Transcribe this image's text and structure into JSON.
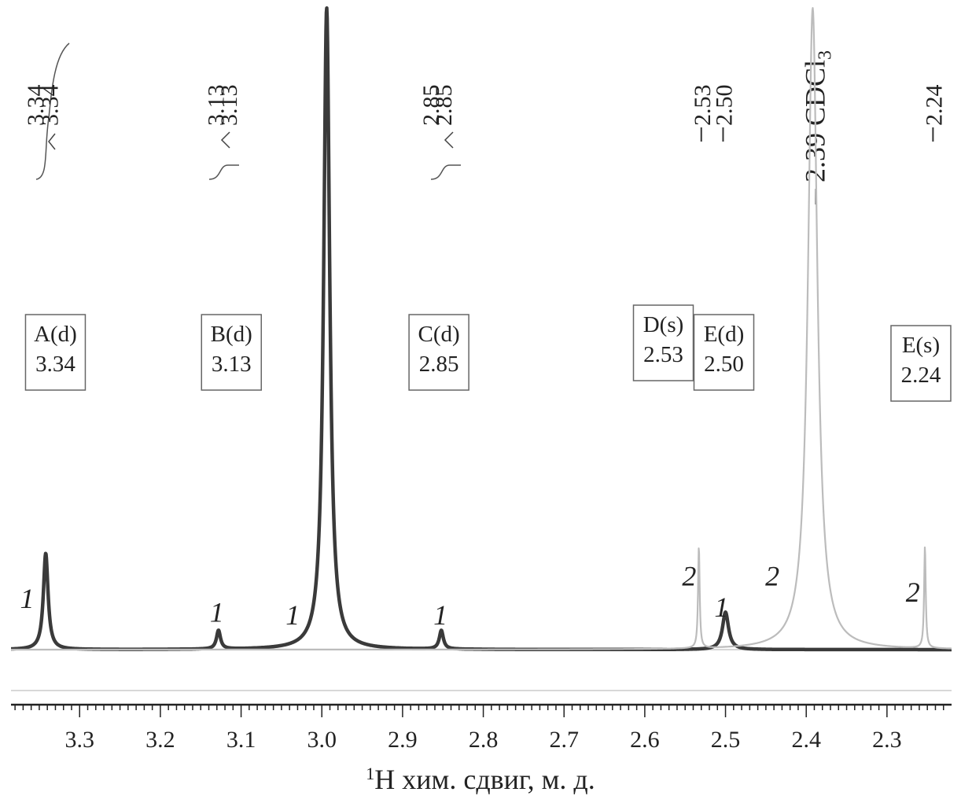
{
  "chart_data": {
    "type": "line",
    "xlabel_sup": "1",
    "xlabel": "H хим. сдвиг, м. д.",
    "xlim": [
      3.385,
      2.22
    ],
    "x_reversed": true,
    "ticks": [
      "3.3",
      "3.2",
      "3.1",
      "3.0",
      "2.9",
      "2.8",
      "2.7",
      "2.6",
      "2.5",
      "2.4",
      "2.3"
    ],
    "series": [
      {
        "name": "1",
        "color": "#3a3a3a",
        "peaks": [
          {
            "ppm": 3.342,
            "height": 0.18,
            "width": 0.0035
          },
          {
            "ppm": 3.128,
            "height": 0.035,
            "width": 0.003
          },
          {
            "ppm": 2.994,
            "height": 1.2,
            "width": 0.0045
          },
          {
            "ppm": 2.852,
            "height": 0.035,
            "width": 0.003
          },
          {
            "ppm": 2.5,
            "height": 0.07,
            "width": 0.0045
          }
        ]
      },
      {
        "name": "2",
        "color": "#bcbcbc",
        "peaks": [
          {
            "ppm": 2.533,
            "height": 0.19,
            "width": 0.0012
          },
          {
            "ppm": 2.392,
            "height": 1.2,
            "width": 0.007
          },
          {
            "ppm": 2.253,
            "height": 0.19,
            "width": 0.0012
          }
        ]
      }
    ],
    "peak_labels": [
      {
        "ppm": 3.356,
        "text": "3.34"
      },
      {
        "ppm": 3.338,
        "text": "3.34"
      },
      {
        "ppm": 3.132,
        "text": "3.13"
      },
      {
        "ppm": 3.116,
        "text": "3.13"
      },
      {
        "ppm": 2.866,
        "text": "2.85"
      },
      {
        "ppm": 2.85,
        "text": "2.85"
      },
      {
        "ppm": 2.53,
        "text": "2.53"
      },
      {
        "ppm": 2.503,
        "text": "2.50"
      },
      {
        "ppm": 2.388,
        "text": "2.39 CDCl"
      },
      {
        "ppm": 2.243,
        "text": "2.24"
      }
    ],
    "solvent_sub": "3",
    "assignment_boxes": [
      {
        "ppm": 3.33,
        "name": "A(d)",
        "value": "3.34"
      },
      {
        "ppm": 3.112,
        "name": "B(d)",
        "value": "3.13"
      },
      {
        "ppm": 2.855,
        "name": "C(d)",
        "value": "2.85"
      },
      {
        "ppm": 2.577,
        "name": "D(s)",
        "value": "2.53"
      },
      {
        "ppm": 2.502,
        "name": "E(d)",
        "value": "2.50"
      },
      {
        "ppm": 2.258,
        "name": "E(s)",
        "value": "2.24"
      }
    ],
    "curve_labels": [
      {
        "ppm": 3.365,
        "level": 0.078,
        "text": "1"
      },
      {
        "ppm": 3.13,
        "level": 0.052,
        "text": "1"
      },
      {
        "ppm": 3.036,
        "level": 0.047,
        "text": "1"
      },
      {
        "ppm": 2.853,
        "level": 0.047,
        "text": "1"
      },
      {
        "ppm": 2.505,
        "level": 0.062,
        "text": "1"
      },
      {
        "ppm": 2.545,
        "level": 0.12,
        "text": "2"
      },
      {
        "ppm": 2.442,
        "level": 0.12,
        "text": "2"
      },
      {
        "ppm": 2.268,
        "level": 0.09,
        "text": "2"
      }
    ]
  }
}
